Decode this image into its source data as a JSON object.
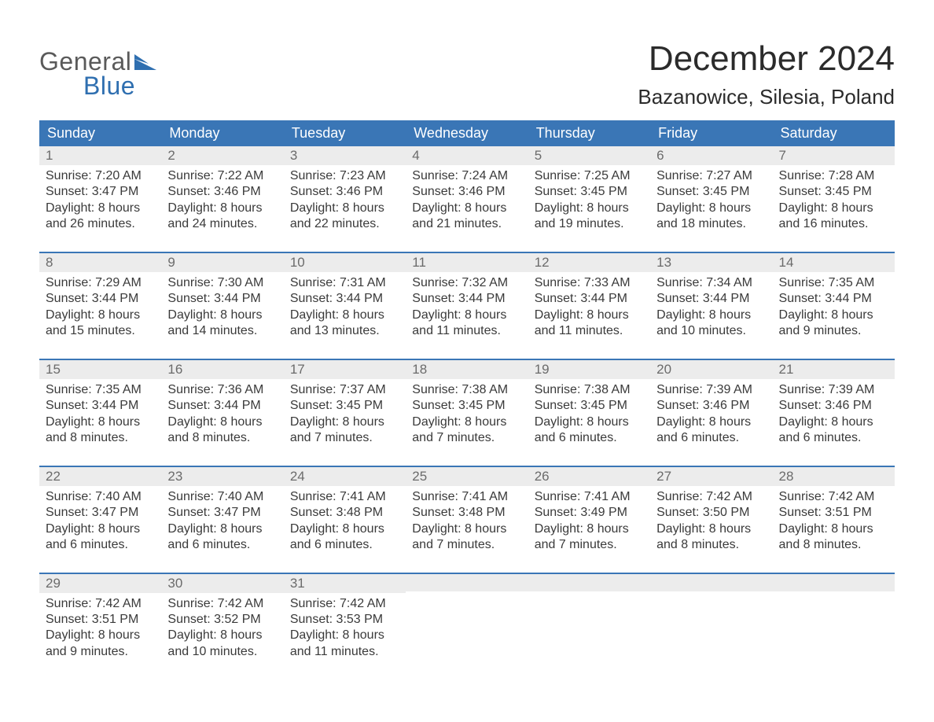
{
  "logo": {
    "text_gray": "General",
    "text_blue": "Blue",
    "icon_color": "#2f6fb0",
    "gray_color": "#5a5a5a"
  },
  "title": "December 2024",
  "location": "Bazanowice, Silesia, Poland",
  "colors": {
    "header_bg": "#3a76b6",
    "header_text": "#ffffff",
    "daynum_bg": "#ececec",
    "daynum_text": "#6b6b6b",
    "body_text": "#3a3a3a",
    "week_border": "#3a76b6",
    "page_bg": "#ffffff"
  },
  "fonts": {
    "title_size_pt": 33,
    "location_size_pt": 20,
    "header_size_pt": 14,
    "body_size_pt": 12,
    "family": "Arial"
  },
  "days_of_week": [
    "Sunday",
    "Monday",
    "Tuesday",
    "Wednesday",
    "Thursday",
    "Friday",
    "Saturday"
  ],
  "labels": {
    "sunrise": "Sunrise: ",
    "sunset": "Sunset: ",
    "daylight_prefix": "Daylight: ",
    "daylight_hours_word": " hours",
    "daylight_and": "and ",
    "daylight_minutes_word": " minutes."
  },
  "weeks": [
    [
      {
        "n": "1",
        "sunrise": "7:20 AM",
        "sunset": "3:47 PM",
        "dl_h": "8",
        "dl_m": "26"
      },
      {
        "n": "2",
        "sunrise": "7:22 AM",
        "sunset": "3:46 PM",
        "dl_h": "8",
        "dl_m": "24"
      },
      {
        "n": "3",
        "sunrise": "7:23 AM",
        "sunset": "3:46 PM",
        "dl_h": "8",
        "dl_m": "22"
      },
      {
        "n": "4",
        "sunrise": "7:24 AM",
        "sunset": "3:46 PM",
        "dl_h": "8",
        "dl_m": "21"
      },
      {
        "n": "5",
        "sunrise": "7:25 AM",
        "sunset": "3:45 PM",
        "dl_h": "8",
        "dl_m": "19"
      },
      {
        "n": "6",
        "sunrise": "7:27 AM",
        "sunset": "3:45 PM",
        "dl_h": "8",
        "dl_m": "18"
      },
      {
        "n": "7",
        "sunrise": "7:28 AM",
        "sunset": "3:45 PM",
        "dl_h": "8",
        "dl_m": "16"
      }
    ],
    [
      {
        "n": "8",
        "sunrise": "7:29 AM",
        "sunset": "3:44 PM",
        "dl_h": "8",
        "dl_m": "15"
      },
      {
        "n": "9",
        "sunrise": "7:30 AM",
        "sunset": "3:44 PM",
        "dl_h": "8",
        "dl_m": "14"
      },
      {
        "n": "10",
        "sunrise": "7:31 AM",
        "sunset": "3:44 PM",
        "dl_h": "8",
        "dl_m": "13"
      },
      {
        "n": "11",
        "sunrise": "7:32 AM",
        "sunset": "3:44 PM",
        "dl_h": "8",
        "dl_m": "11"
      },
      {
        "n": "12",
        "sunrise": "7:33 AM",
        "sunset": "3:44 PM",
        "dl_h": "8",
        "dl_m": "11"
      },
      {
        "n": "13",
        "sunrise": "7:34 AM",
        "sunset": "3:44 PM",
        "dl_h": "8",
        "dl_m": "10"
      },
      {
        "n": "14",
        "sunrise": "7:35 AM",
        "sunset": "3:44 PM",
        "dl_h": "8",
        "dl_m": "9"
      }
    ],
    [
      {
        "n": "15",
        "sunrise": "7:35 AM",
        "sunset": "3:44 PM",
        "dl_h": "8",
        "dl_m": "8"
      },
      {
        "n": "16",
        "sunrise": "7:36 AM",
        "sunset": "3:44 PM",
        "dl_h": "8",
        "dl_m": "8"
      },
      {
        "n": "17",
        "sunrise": "7:37 AM",
        "sunset": "3:45 PM",
        "dl_h": "8",
        "dl_m": "7"
      },
      {
        "n": "18",
        "sunrise": "7:38 AM",
        "sunset": "3:45 PM",
        "dl_h": "8",
        "dl_m": "7"
      },
      {
        "n": "19",
        "sunrise": "7:38 AM",
        "sunset": "3:45 PM",
        "dl_h": "8",
        "dl_m": "6"
      },
      {
        "n": "20",
        "sunrise": "7:39 AM",
        "sunset": "3:46 PM",
        "dl_h": "8",
        "dl_m": "6"
      },
      {
        "n": "21",
        "sunrise": "7:39 AM",
        "sunset": "3:46 PM",
        "dl_h": "8",
        "dl_m": "6"
      }
    ],
    [
      {
        "n": "22",
        "sunrise": "7:40 AM",
        "sunset": "3:47 PM",
        "dl_h": "8",
        "dl_m": "6"
      },
      {
        "n": "23",
        "sunrise": "7:40 AM",
        "sunset": "3:47 PM",
        "dl_h": "8",
        "dl_m": "6"
      },
      {
        "n": "24",
        "sunrise": "7:41 AM",
        "sunset": "3:48 PM",
        "dl_h": "8",
        "dl_m": "6"
      },
      {
        "n": "25",
        "sunrise": "7:41 AM",
        "sunset": "3:48 PM",
        "dl_h": "8",
        "dl_m": "7"
      },
      {
        "n": "26",
        "sunrise": "7:41 AM",
        "sunset": "3:49 PM",
        "dl_h": "8",
        "dl_m": "7"
      },
      {
        "n": "27",
        "sunrise": "7:42 AM",
        "sunset": "3:50 PM",
        "dl_h": "8",
        "dl_m": "8"
      },
      {
        "n": "28",
        "sunrise": "7:42 AM",
        "sunset": "3:51 PM",
        "dl_h": "8",
        "dl_m": "8"
      }
    ],
    [
      {
        "n": "29",
        "sunrise": "7:42 AM",
        "sunset": "3:51 PM",
        "dl_h": "8",
        "dl_m": "9"
      },
      {
        "n": "30",
        "sunrise": "7:42 AM",
        "sunset": "3:52 PM",
        "dl_h": "8",
        "dl_m": "10"
      },
      {
        "n": "31",
        "sunrise": "7:42 AM",
        "sunset": "3:53 PM",
        "dl_h": "8",
        "dl_m": "11"
      },
      null,
      null,
      null,
      null
    ]
  ]
}
